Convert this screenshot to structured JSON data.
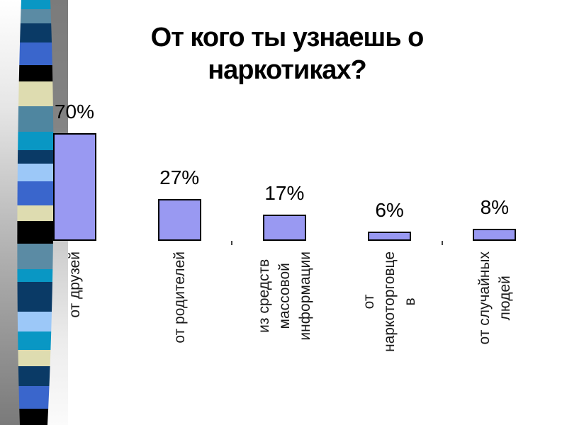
{
  "title": "От кого ты узнаешь о наркотиках?",
  "chart_data": {
    "type": "bar",
    "title": "От кого ты узнаешь о наркотиках?",
    "categories": [
      "от друзей",
      "от родителей",
      "из средств массовой информации",
      "от наркоторговцев",
      "от случайных людей"
    ],
    "values": [
      70,
      27,
      17,
      6,
      8
    ],
    "value_labels": [
      "70%",
      "27%",
      "17%",
      "6%",
      "8%"
    ],
    "category_label_lines": [
      [
        "от друзей"
      ],
      [
        "от родителей"
      ],
      [
        "из средств",
        "массовой",
        "информации"
      ],
      [
        "от",
        "наркоторговце",
        "в"
      ],
      [
        "от случайных",
        "людей"
      ]
    ],
    "unit": "%",
    "grid": false,
    "legend": false,
    "axes_visible": false,
    "bar_color": "#9999f2",
    "bar_border_color": "#000000",
    "label_color": "#000000"
  },
  "decoration": {
    "ribbon_stripes": [
      {
        "color": "#0997c4",
        "from": 0,
        "to": 13
      },
      {
        "color": "#5b8ba4",
        "from": 13,
        "to": 33
      },
      {
        "color": "#0a3a66",
        "from": 33,
        "to": 60
      },
      {
        "color": "#3a66cc",
        "from": 60,
        "to": 92
      },
      {
        "color": "#000000",
        "from": 92,
        "to": 115
      },
      {
        "color": "#dedcb0",
        "from": 115,
        "to": 150
      },
      {
        "color": "#4f86a0",
        "from": 150,
        "to": 186
      },
      {
        "color": "#0997c4",
        "from": 186,
        "to": 212
      },
      {
        "color": "#0a3a66",
        "from": 212,
        "to": 231
      },
      {
        "color": "#9cc8f8",
        "from": 231,
        "to": 256
      },
      {
        "color": "#3a66cc",
        "from": 256,
        "to": 290
      },
      {
        "color": "#dedcb0",
        "from": 290,
        "to": 312
      },
      {
        "color": "#000000",
        "from": 312,
        "to": 344
      },
      {
        "color": "#5b8ba4",
        "from": 344,
        "to": 380
      },
      {
        "color": "#0997c4",
        "from": 380,
        "to": 398
      },
      {
        "color": "#0a3a66",
        "from": 398,
        "to": 440
      },
      {
        "color": "#9cc8f8",
        "from": 440,
        "to": 468
      },
      {
        "color": "#0997c4",
        "from": 468,
        "to": 494
      },
      {
        "color": "#dedcb0",
        "from": 494,
        "to": 517
      },
      {
        "color": "#0a3a66",
        "from": 517,
        "to": 545
      },
      {
        "color": "#3a66cc",
        "from": 545,
        "to": 577
      },
      {
        "color": "#000000",
        "from": 577,
        "to": 600
      }
    ]
  }
}
